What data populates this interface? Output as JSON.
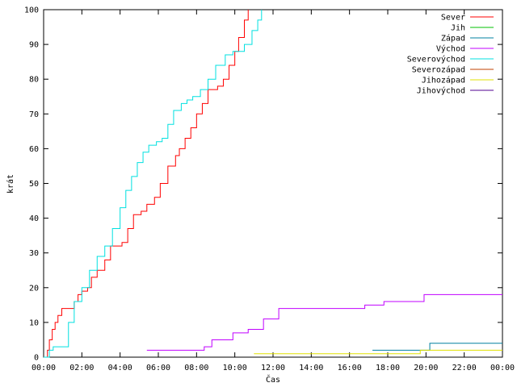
{
  "chart_data": {
    "type": "line",
    "title": "",
    "xlabel": "Čas",
    "ylabel": "krát",
    "xlim": [
      0,
      24
    ],
    "ylim": [
      0,
      100
    ],
    "grid": false,
    "legend_position": "top-right",
    "x_ticks": [
      "00:00",
      "02:00",
      "04:00",
      "06:00",
      "08:00",
      "10:00",
      "12:00",
      "14:00",
      "16:00",
      "18:00",
      "20:00",
      "22:00",
      "00:00"
    ],
    "y_ticks": [
      0,
      10,
      20,
      30,
      40,
      50,
      60,
      70,
      80,
      90,
      100
    ],
    "series": [
      {
        "name": "Sever",
        "color": "#ff0000",
        "x": [
          0,
          0.2,
          0.3,
          0.45,
          0.6,
          0.75,
          0.95,
          1.5,
          1.6,
          1.8,
          2.0,
          2.3,
          2.5,
          2.8,
          3.2,
          3.5,
          4.1,
          4.4,
          4.7,
          5.1,
          5.4,
          5.8,
          6.1,
          6.5,
          6.9,
          7.1,
          7.4,
          7.7,
          8.0,
          8.3,
          8.6,
          9.1,
          9.4,
          9.7,
          10.0,
          10.2,
          10.5,
          10.7
        ],
        "y": [
          0,
          2,
          5,
          8,
          10,
          12,
          14,
          14,
          16,
          18,
          19,
          20,
          23,
          25,
          28,
          32,
          33,
          37,
          41,
          42,
          44,
          46,
          50,
          55,
          58,
          60,
          63,
          66,
          70,
          73,
          77,
          78,
          80,
          84,
          88,
          92,
          97,
          100
        ]
      },
      {
        "name": "Jih",
        "color": "#00c000",
        "x": [],
        "y": []
      },
      {
        "name": "Západ",
        "color": "#0080a0",
        "x": [
          17.2,
          20.2,
          24
        ],
        "y": [
          2,
          4,
          4
        ]
      },
      {
        "name": "Východ",
        "color": "#c000ff",
        "x": [
          5.4,
          8.4,
          8.8,
          9.9,
          10.7,
          11.5,
          12.3,
          16.8,
          17.8,
          19.9,
          24
        ],
        "y": [
          2,
          3,
          5,
          7,
          8,
          11,
          14,
          15,
          16,
          18,
          18
        ]
      },
      {
        "name": "Severovýchod",
        "color": "#00e0e0",
        "x": [
          0,
          0.3,
          0.5,
          0.9,
          1.3,
          1.6,
          2.0,
          2.4,
          2.8,
          3.2,
          3.6,
          4.0,
          4.3,
          4.6,
          4.9,
          5.2,
          5.5,
          5.9,
          6.2,
          6.5,
          6.8,
          7.2,
          7.5,
          7.8,
          8.2,
          8.6,
          9.0,
          9.5,
          9.9,
          10.5,
          10.9,
          11.2,
          11.4
        ],
        "y": [
          0,
          2,
          3,
          3,
          10,
          16,
          20,
          25,
          29,
          32,
          37,
          43,
          48,
          52,
          56,
          59,
          61,
          62,
          63,
          67,
          71,
          73,
          74,
          75,
          77,
          80,
          84,
          87,
          88,
          90,
          94,
          97,
          100
        ]
      },
      {
        "name": "Severozápad",
        "color": "#c04000",
        "x": [],
        "y": []
      },
      {
        "name": "Jihozápad",
        "color": "#e0e000",
        "x": [
          11.0,
          19.7,
          24
        ],
        "y": [
          1,
          2,
          2
        ]
      },
      {
        "name": "Jihovýchod",
        "color": "#500090",
        "x": [],
        "y": []
      }
    ]
  }
}
